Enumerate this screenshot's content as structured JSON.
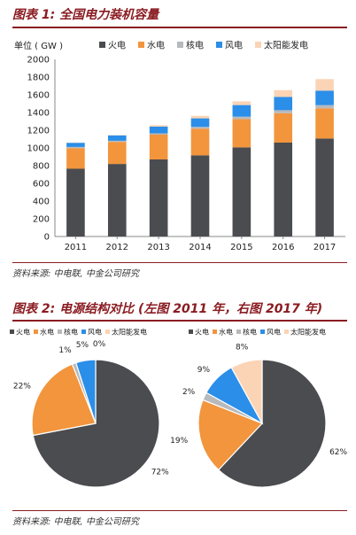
{
  "figure1": {
    "title": "图表 1:  全国电力装机容量",
    "source": "资料来源:  中电联,  中金公司研究"
  },
  "figure2": {
    "title": "图表 2:  电源结构对比 (左图 2011 年，右图 2017 年)",
    "source": "资料来源:  中电联,  中金公司研究"
  },
  "colors": {
    "thermal": "#4a4c50",
    "hydro": "#f2953d",
    "nuclear": "#b7b9bc",
    "wind": "#2b8ee8",
    "solar": "#fad4b5",
    "accent": "#8a1c22"
  },
  "chart_data": [
    {
      "type": "bar",
      "stacked": true,
      "title": "",
      "unit_label": "单位 ( GW )",
      "categories": [
        "2011",
        "2012",
        "2013",
        "2014",
        "2015",
        "2016",
        "2017"
      ],
      "series": [
        {
          "name": "火电",
          "color": "#4a4c50",
          "values": [
            765,
            819,
            870,
            916,
            1006,
            1060,
            1106
          ]
        },
        {
          "name": "水电",
          "color": "#f2953d",
          "values": [
            233,
            249,
            280,
            302,
            320,
            332,
            341
          ]
        },
        {
          "name": "核电",
          "color": "#b7b9bc",
          "values": [
            13,
            13,
            15,
            20,
            27,
            34,
            36
          ]
        },
        {
          "name": "风电",
          "color": "#2b8ee8",
          "values": [
            47,
            61,
            76,
            96,
            131,
            149,
            164
          ]
        },
        {
          "name": "太阳能发电",
          "color": "#fad4b5",
          "values": [
            2,
            3,
            16,
            28,
            42,
            77,
            130
          ]
        }
      ],
      "ylim": [
        0,
        2000
      ],
      "yticks": [
        0,
        200,
        400,
        600,
        800,
        1000,
        1200,
        1400,
        1600,
        1800,
        2000
      ],
      "legend": "top"
    },
    {
      "type": "pie",
      "year": "2011",
      "labels": [
        "火电",
        "水电",
        "核电",
        "风电",
        "太阳能发电"
      ],
      "values": [
        72,
        22,
        1,
        5,
        0
      ],
      "value_labels": [
        "72%",
        "22%",
        "1%",
        "5%",
        "0%"
      ],
      "colors": [
        "#4a4c50",
        "#f2953d",
        "#b7b9bc",
        "#2b8ee8",
        "#fad4b5"
      ],
      "legend": "top"
    },
    {
      "type": "pie",
      "year": "2017",
      "labels": [
        "火电",
        "水电",
        "核电",
        "风电",
        "太阳能发电"
      ],
      "values": [
        62,
        19,
        2,
        9,
        8
      ],
      "value_labels": [
        "62%",
        "19%",
        "2%",
        "9%",
        "8%"
      ],
      "colors": [
        "#4a4c50",
        "#f2953d",
        "#b7b9bc",
        "#2b8ee8",
        "#fad4b5"
      ],
      "legend": "top"
    }
  ]
}
